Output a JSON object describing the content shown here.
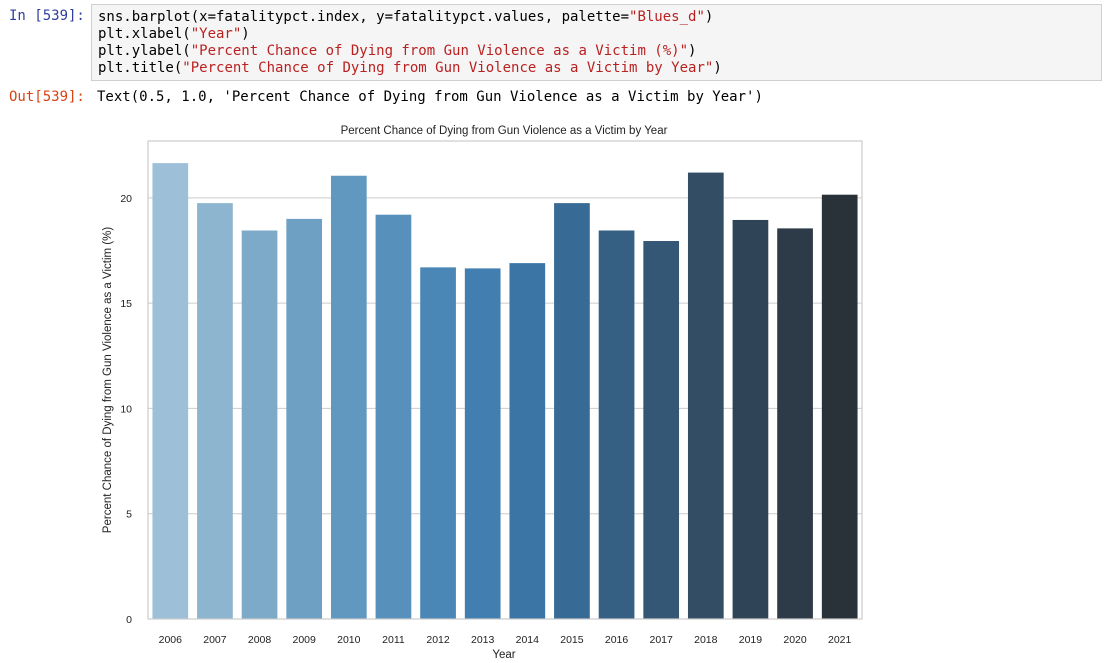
{
  "cell": {
    "in_prompt": "In [539]:",
    "out_prompt": "Out[539]:",
    "code": {
      "line1_pre": "sns.barplot(x=fatalitypct.index, y=fatalitypct.values, palette=",
      "line1_str": "\"Blues_d\"",
      "line1_post": ")",
      "line2_pre": "plt.xlabel(",
      "line2_str": "\"Year\"",
      "line2_post": ")",
      "line3_pre": "plt.ylabel(",
      "line3_str": "\"Percent Chance of Dying from Gun Violence as a Victim (%)\"",
      "line3_post": ")",
      "line4_pre": "plt.title(",
      "line4_str": "\"Percent Chance of Dying from Gun Violence as a Victim by Year\"",
      "line4_post": ")"
    },
    "output_text": "Text(0.5, 1.0, 'Percent Chance of Dying from Gun Violence as a Victim by Year')"
  },
  "chart_data": {
    "type": "bar",
    "title": "Percent Chance of Dying from Gun Violence as a Victim by Year",
    "xlabel": "Year",
    "ylabel": "Percent Chance of Dying from Gun Violence as a Victim (%)",
    "categories": [
      "2006",
      "2007",
      "2008",
      "2009",
      "2010",
      "2011",
      "2012",
      "2013",
      "2014",
      "2015",
      "2016",
      "2017",
      "2018",
      "2019",
      "2020",
      "2021"
    ],
    "values": [
      21.65,
      19.75,
      18.45,
      19.0,
      21.05,
      19.2,
      16.7,
      16.65,
      16.9,
      19.75,
      18.45,
      17.95,
      21.2,
      18.95,
      18.55,
      20.15
    ],
    "ylim": [
      0,
      22.7
    ],
    "yticks": [
      0,
      5,
      10,
      15,
      20
    ],
    "grid": true,
    "palette": "Blues_d",
    "colors": [
      "#9dc0d8",
      "#8db5d0",
      "#7eaac9",
      "#6ea0c4",
      "#6098c0",
      "#5690bb",
      "#4b87b6",
      "#427eb0",
      "#3b75a5",
      "#376a94",
      "#365f84",
      "#355776",
      "#334d64",
      "#2f4456",
      "#2d3b48",
      "#2a3239"
    ]
  }
}
